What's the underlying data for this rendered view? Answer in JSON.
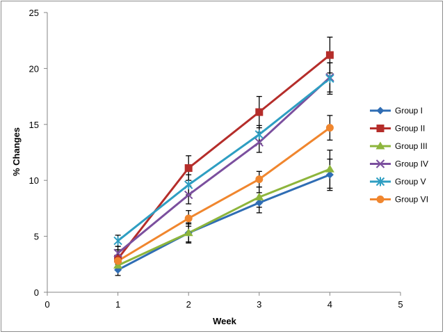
{
  "chart_data": {
    "type": "line",
    "xlabel": "Week",
    "ylabel": "% Changes",
    "xlim": [
      0,
      5
    ],
    "ylim": [
      0,
      25
    ],
    "xticks": [
      0,
      1,
      2,
      3,
      4,
      5
    ],
    "yticks": [
      0,
      5,
      10,
      15,
      20,
      25
    ],
    "grid": false,
    "legend_position": "right",
    "x": [
      1,
      2,
      3,
      4
    ],
    "series": [
      {
        "name": "Group I",
        "color": "#2f6db4",
        "marker": "diamond",
        "values": [
          2.0,
          5.3,
          8.0,
          10.5
        ],
        "errors": [
          0.5,
          0.9,
          0.9,
          1.4
        ]
      },
      {
        "name": "Group II",
        "color": "#b52d2a",
        "marker": "square",
        "values": [
          3.0,
          11.1,
          16.1,
          21.2
        ],
        "errors": [
          0.8,
          1.1,
          1.4,
          1.6
        ]
      },
      {
        "name": "Group III",
        "color": "#8db53c",
        "marker": "triangle",
        "values": [
          2.4,
          5.3,
          8.5,
          11.0
        ],
        "errors": [
          0.4,
          0.8,
          0.9,
          1.7
        ]
      },
      {
        "name": "Group IV",
        "color": "#7b4f9e",
        "marker": "x",
        "values": [
          3.5,
          8.7,
          13.4,
          19.2
        ],
        "errors": [
          0.6,
          0.8,
          0.9,
          1.3
        ]
      },
      {
        "name": "Group V",
        "color": "#2e9ec2",
        "marker": "star",
        "values": [
          4.6,
          9.6,
          14.1,
          19.1
        ],
        "errors": [
          0.5,
          0.9,
          0.8,
          1.4
        ]
      },
      {
        "name": "Group VI",
        "color": "#f0862e",
        "marker": "circle",
        "values": [
          2.8,
          6.6,
          10.1,
          14.7
        ],
        "errors": [
          0.5,
          0.7,
          0.7,
          1.1
        ]
      }
    ]
  }
}
